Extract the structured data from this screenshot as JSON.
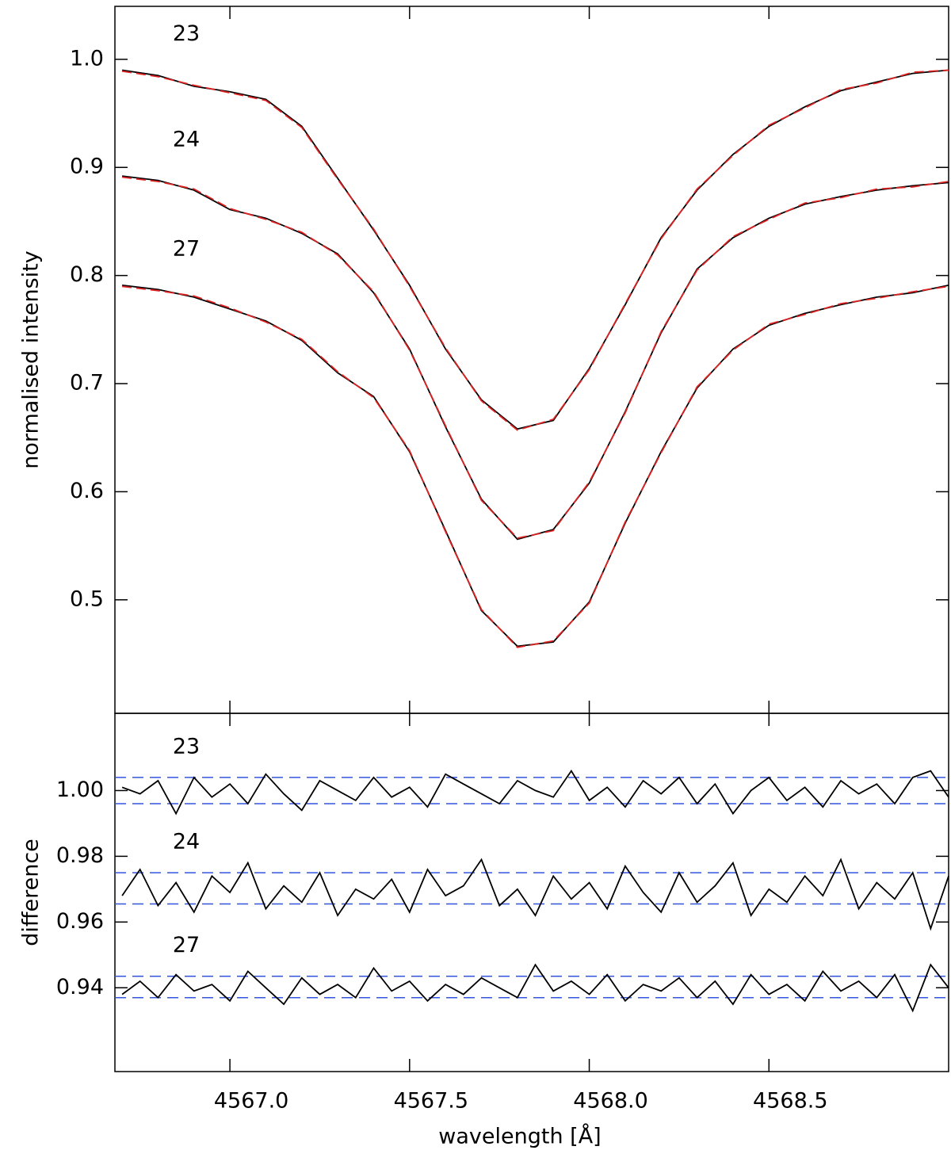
{
  "chart_data": [
    {
      "type": "line",
      "ylabel": "normalised intensity",
      "xlim": [
        4566.68,
        4569.0
      ],
      "ylim": [
        0.395,
        1.049
      ],
      "xticks": [
        4567.0,
        4567.5,
        4568.0,
        4568.5
      ],
      "yticks": [
        {
          "value": 1,
          "label": "1.0"
        },
        0.9,
        0.8,
        0.7,
        0.6,
        0.5
      ],
      "x": [
        4566.7,
        4566.8,
        4566.9,
        4567.0,
        4567.1,
        4567.2,
        4567.3,
        4567.4,
        4567.5,
        4567.6,
        4567.7,
        4567.8,
        4567.9,
        4568.0,
        4568.1,
        4568.2,
        4568.3,
        4568.4,
        4568.5,
        4568.6,
        4568.7,
        4568.8,
        4568.9,
        4569.0
      ],
      "fit_color": "#dd2222",
      "series": [
        {
          "name": "23",
          "color": "#000000",
          "values": [
            0.99,
            0.985,
            0.975,
            0.97,
            0.963,
            0.938,
            0.89,
            0.842,
            0.791,
            0.732,
            0.685,
            0.658,
            0.666,
            0.714,
            0.773,
            0.835,
            0.879,
            0.912,
            0.938,
            0.956,
            0.971,
            0.979,
            0.987,
            0.99
          ],
          "fit_values": [
            0.989,
            0.984,
            0.976,
            0.969,
            0.962,
            0.937,
            0.889,
            0.843,
            0.79,
            0.733,
            0.684,
            0.657,
            0.667,
            0.713,
            0.774,
            0.834,
            0.88,
            0.911,
            0.939,
            0.955,
            0.972,
            0.978,
            0.988,
            0.99
          ]
        },
        {
          "name": "24",
          "color": "#000000",
          "values": [
            0.892,
            0.888,
            0.879,
            0.861,
            0.853,
            0.839,
            0.82,
            0.784,
            0.732,
            0.66,
            0.593,
            0.556,
            0.565,
            0.608,
            0.674,
            0.747,
            0.806,
            0.835,
            0.853,
            0.866,
            0.873,
            0.879,
            0.883,
            0.886
          ],
          "fit_values": [
            0.891,
            0.887,
            0.88,
            0.862,
            0.852,
            0.84,
            0.819,
            0.785,
            0.731,
            0.661,
            0.592,
            0.557,
            0.564,
            0.609,
            0.673,
            0.748,
            0.805,
            0.836,
            0.852,
            0.867,
            0.872,
            0.88,
            0.882,
            0.887
          ]
        },
        {
          "name": "27",
          "color": "#000000",
          "values": [
            0.791,
            0.787,
            0.78,
            0.769,
            0.758,
            0.74,
            0.71,
            0.688,
            0.637,
            0.564,
            0.49,
            0.457,
            0.461,
            0.498,
            0.571,
            0.637,
            0.696,
            0.732,
            0.754,
            0.765,
            0.773,
            0.78,
            0.784,
            0.791
          ],
          "fit_values": [
            0.79,
            0.786,
            0.781,
            0.77,
            0.757,
            0.741,
            0.711,
            0.687,
            0.638,
            0.563,
            0.491,
            0.456,
            0.462,
            0.497,
            0.572,
            0.636,
            0.697,
            0.731,
            0.755,
            0.764,
            0.774,
            0.779,
            0.785,
            0.79
          ]
        }
      ]
    },
    {
      "type": "residual",
      "xlabel": "wavelength [Å]",
      "ylabel": "difference",
      "xlim": [
        4566.68,
        4569.0
      ],
      "ylim": [
        0.9145,
        1.0235
      ],
      "xticks": [
        {
          "value": 4567,
          "label": "4567.0"
        },
        4567.5,
        {
          "value": 4568,
          "label": "4568.0"
        },
        4568.5
      ],
      "yticks": [
        {
          "value": 1,
          "label": "1.00"
        },
        0.98,
        0.96,
        0.94
      ],
      "band_color": "#3355dd",
      "x": [
        4566.7,
        4566.75,
        4566.8,
        4566.85,
        4566.9,
        4566.95,
        4567.0,
        4567.05,
        4567.1,
        4567.15,
        4567.2,
        4567.25,
        4567.3,
        4567.35,
        4567.4,
        4567.45,
        4567.5,
        4567.55,
        4567.6,
        4567.65,
        4567.7,
        4567.75,
        4567.8,
        4567.85,
        4567.9,
        4567.95,
        4568.0,
        4568.05,
        4568.1,
        4568.15,
        4568.2,
        4568.25,
        4568.3,
        4568.35,
        4568.4,
        4568.45,
        4568.5,
        4568.55,
        4568.6,
        4568.65,
        4568.7,
        4568.75,
        4568.8,
        4568.85,
        4568.9,
        4568.95,
        4569.0
      ],
      "series": [
        {
          "name": "23",
          "color": "#000000",
          "band": [
            0.996,
            1.004
          ],
          "values": [
            1.001,
            0.999,
            1.003,
            0.993,
            1.004,
            0.998,
            1.002,
            0.996,
            1.005,
            0.999,
            0.994,
            1.003,
            1.0,
            0.997,
            1.004,
            0.998,
            1.001,
            0.995,
            1.005,
            1.002,
            0.999,
            0.996,
            1.003,
            1.0,
            0.998,
            1.006,
            0.997,
            1.001,
            0.995,
            1.003,
            0.999,
            1.004,
            0.996,
            1.002,
            0.993,
            1.0,
            1.004,
            0.997,
            1.001,
            0.995,
            1.003,
            0.999,
            1.002,
            0.996,
            1.004,
            1.006,
            0.998
          ]
        },
        {
          "name": "24",
          "color": "#000000",
          "band": [
            0.9655,
            0.975
          ],
          "values": [
            0.968,
            0.976,
            0.965,
            0.972,
            0.963,
            0.974,
            0.969,
            0.978,
            0.964,
            0.971,
            0.966,
            0.975,
            0.962,
            0.97,
            0.967,
            0.973,
            0.963,
            0.976,
            0.968,
            0.971,
            0.979,
            0.965,
            0.97,
            0.962,
            0.974,
            0.967,
            0.972,
            0.964,
            0.977,
            0.969,
            0.963,
            0.975,
            0.966,
            0.971,
            0.978,
            0.962,
            0.97,
            0.966,
            0.974,
            0.968,
            0.979,
            0.964,
            0.972,
            0.967,
            0.975,
            0.958,
            0.974
          ]
        },
        {
          "name": "27",
          "color": "#000000",
          "band": [
            0.937,
            0.9435
          ],
          "values": [
            0.938,
            0.942,
            0.937,
            0.944,
            0.939,
            0.941,
            0.936,
            0.945,
            0.94,
            0.935,
            0.943,
            0.938,
            0.941,
            0.937,
            0.946,
            0.939,
            0.942,
            0.936,
            0.941,
            0.938,
            0.943,
            0.94,
            0.937,
            0.947,
            0.939,
            0.942,
            0.938,
            0.944,
            0.936,
            0.941,
            0.939,
            0.943,
            0.937,
            0.942,
            0.935,
            0.944,
            0.938,
            0.941,
            0.936,
            0.945,
            0.939,
            0.942,
            0.937,
            0.944,
            0.933,
            0.947,
            0.94
          ]
        }
      ]
    }
  ]
}
